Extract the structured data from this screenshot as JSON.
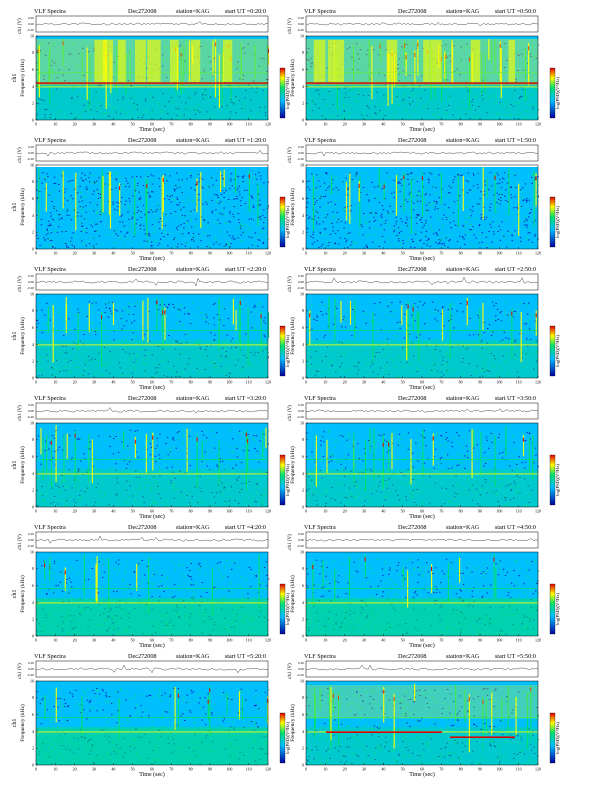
{
  "page": {
    "title_prefix": "VLF Spectra",
    "date": "Dec272008",
    "station": "station=KAG",
    "ch_label": "ch1 (V)",
    "freq_label": "Frequency (kHz)",
    "side_label": "ch1",
    "time_label": "Time (sec)",
    "cbar_label": "log(PSD)(V²/Hz)"
  },
  "colors": {
    "background": "#00bfff",
    "low": "#0000a0",
    "mid": "#00e070",
    "high": "#ffff00",
    "peak": "#e00000"
  },
  "chart_data": [
    {
      "type": "heatmap",
      "title": "VLF Spectra  Dec272008  station=KAG  start UT =0:20:0",
      "start": "start UT =0:20:0",
      "x_ticks": [
        "0",
        "10",
        "20",
        "30",
        "40",
        "50",
        "60",
        "70",
        "80",
        "90",
        "100",
        "110",
        "120"
      ],
      "y_ticks": [
        "0",
        "2",
        "4",
        "6",
        "8",
        "10"
      ],
      "v_ticks": [
        "0.20",
        "0.00",
        "-0.20"
      ],
      "xlim": [
        0,
        120
      ],
      "ylim": [
        0,
        10
      ],
      "intensity": "strong",
      "left_panel": true
    },
    {
      "type": "heatmap",
      "title": "VLF Spectra  Dec272008  station=KAG  start UT =0:50:0",
      "start": "start UT =0:50:0",
      "x_ticks": [
        "0",
        "10",
        "20",
        "30",
        "40",
        "50",
        "60",
        "70",
        "80",
        "90",
        "100",
        "110",
        "120"
      ],
      "y_ticks": [
        "0",
        "2",
        "4",
        "6",
        "8",
        "10"
      ],
      "v_ticks": [
        "0.20",
        "0.00",
        "-0.20"
      ],
      "xlim": [
        0,
        120
      ],
      "ylim": [
        0,
        10
      ],
      "intensity": "strong",
      "left_panel": false
    },
    {
      "type": "heatmap",
      "title": "VLF Spectra  Dec272008  station=KAG  start UT =1:20:0",
      "start": "start UT =1:20:0",
      "x_ticks": [
        "0",
        "10",
        "20",
        "30",
        "40",
        "50",
        "60",
        "70",
        "80",
        "90",
        "100",
        "110",
        "120"
      ],
      "y_ticks": [
        "0",
        "2",
        "4",
        "6",
        "8",
        "10"
      ],
      "v_ticks": [
        "0.20",
        "0.00",
        "-0.20"
      ],
      "xlim": [
        0,
        120
      ],
      "ylim": [
        0,
        10
      ],
      "intensity": "weak",
      "left_panel": true
    },
    {
      "type": "heatmap",
      "title": "VLF Spectra  Dec272008  station=KAG  start UT =1:50:0",
      "start": "start UT =1:50:0",
      "x_ticks": [
        "0",
        "10",
        "20",
        "30",
        "40",
        "50",
        "60",
        "70",
        "80",
        "90",
        "100",
        "110",
        "120"
      ],
      "y_ticks": [
        "0",
        "2",
        "4",
        "6",
        "8",
        "10"
      ],
      "v_ticks": [
        "0.20",
        "0.00",
        "-0.20"
      ],
      "xlim": [
        0,
        120
      ],
      "ylim": [
        0,
        10
      ],
      "intensity": "weak",
      "left_panel": false
    },
    {
      "type": "heatmap",
      "title": "VLF Spectra  Dec272008  station=KAG  start UT =2:20:0",
      "start": "start UT =2:20:0",
      "x_ticks": [
        "0",
        "10",
        "20",
        "30",
        "40",
        "50",
        "60",
        "70",
        "80",
        "90",
        "100",
        "110",
        "120"
      ],
      "y_ticks": [
        "0",
        "2",
        "4",
        "6",
        "8",
        "10"
      ],
      "v_ticks": [
        "0.20",
        "0.00",
        "-0.20"
      ],
      "xlim": [
        0,
        120
      ],
      "ylim": [
        0,
        10
      ],
      "intensity": "medium",
      "left_panel": true
    },
    {
      "type": "heatmap",
      "title": "VLF Spectra  Dec272008  station=KAG  start UT =2:50:0",
      "start": "start UT =2:50:0",
      "x_ticks": [
        "0",
        "10",
        "20",
        "30",
        "40",
        "50",
        "60",
        "70",
        "80",
        "90",
        "100",
        "110",
        "120"
      ],
      "y_ticks": [
        "0",
        "2",
        "4",
        "6",
        "8",
        "10"
      ],
      "v_ticks": [
        "0.20",
        "0.00",
        "-0.20"
      ],
      "xlim": [
        0,
        120
      ],
      "ylim": [
        0,
        10
      ],
      "intensity": "medium",
      "left_panel": false
    },
    {
      "type": "heatmap",
      "title": "VLF Spectra  Dec272008  station=KAG  start UT =3:20:0",
      "start": "start UT =3:20:0",
      "x_ticks": [
        "0",
        "10",
        "20",
        "30",
        "40",
        "50",
        "60",
        "70",
        "80",
        "90",
        "100",
        "110",
        "120"
      ],
      "y_ticks": [
        "0",
        "2",
        "4",
        "6",
        "8",
        "10"
      ],
      "v_ticks": [
        "0.20",
        "0.00",
        "-0.20"
      ],
      "xlim": [
        0,
        120
      ],
      "ylim": [
        0,
        10
      ],
      "intensity": "medium",
      "left_panel": true
    },
    {
      "type": "heatmap",
      "title": "VLF Spectra  Dec272008  station=KAG  start UT =3:50:0",
      "start": "start UT =3:50:0",
      "x_ticks": [
        "0",
        "10",
        "20",
        "30",
        "40",
        "50",
        "60",
        "70",
        "80",
        "90",
        "100",
        "110",
        "120"
      ],
      "y_ticks": [
        "0",
        "2",
        "4",
        "6",
        "8",
        "10"
      ],
      "v_ticks": [
        "0.20",
        "0.00",
        "-0.20"
      ],
      "xlim": [
        0,
        120
      ],
      "ylim": [
        0,
        10
      ],
      "intensity": "medium",
      "left_panel": false
    },
    {
      "type": "heatmap",
      "title": "VLF Spectra  Dec272008  station=KAG  start UT =4:20:0",
      "start": "start UT =4:20:0",
      "x_ticks": [
        "0",
        "10",
        "20",
        "30",
        "40",
        "50",
        "60",
        "70",
        "80",
        "90",
        "100",
        "110",
        "120"
      ],
      "y_ticks": [
        "0",
        "2",
        "4",
        "6",
        "8",
        "10"
      ],
      "v_ticks": [
        "0.20",
        "0.00",
        "-0.20"
      ],
      "xlim": [
        0,
        120
      ],
      "ylim": [
        0,
        10
      ],
      "intensity": "calm",
      "left_panel": true
    },
    {
      "type": "heatmap",
      "title": "VLF Spectra  Dec272008  station=KAG  start UT =4:50:0",
      "start": "start UT =4:50:0",
      "x_ticks": [
        "0",
        "10",
        "20",
        "30",
        "40",
        "50",
        "60",
        "70",
        "80",
        "90",
        "100",
        "110",
        "120"
      ],
      "y_ticks": [
        "0",
        "2",
        "4",
        "6",
        "8",
        "10"
      ],
      "v_ticks": [
        "0.20",
        "0.00",
        "-0.20"
      ],
      "xlim": [
        0,
        120
      ],
      "ylim": [
        0,
        10
      ],
      "intensity": "calm",
      "left_panel": false
    },
    {
      "type": "heatmap",
      "title": "VLF Spectra  Dec272008  station=KAG  start UT =5:20:0",
      "start": "start UT =5:20:0",
      "x_ticks": [
        "0",
        "10",
        "20",
        "30",
        "40",
        "50",
        "60",
        "70",
        "80",
        "90",
        "100",
        "110",
        "120"
      ],
      "y_ticks": [
        "0",
        "2",
        "4",
        "6",
        "8",
        "10"
      ],
      "v_ticks": [
        "0.20",
        "0.00",
        "-0.20"
      ],
      "xlim": [
        0,
        120
      ],
      "ylim": [
        0,
        10
      ],
      "intensity": "calm",
      "left_panel": true
    },
    {
      "type": "heatmap",
      "title": "VLF Spectra  Dec272008  station=KAG  start UT =5:50:0",
      "start": "start UT =5:50:0",
      "x_ticks": [
        "0",
        "10",
        "20",
        "30",
        "40",
        "50",
        "60",
        "70",
        "80",
        "90",
        "100",
        "110",
        "120"
      ],
      "y_ticks": [
        "0",
        "2",
        "4",
        "6",
        "8",
        "10"
      ],
      "v_ticks": [
        "0.20",
        "0.00",
        "-0.20"
      ],
      "xlim": [
        0,
        120
      ],
      "ylim": [
        0,
        10
      ],
      "intensity": "strong-line",
      "left_panel": false
    }
  ]
}
